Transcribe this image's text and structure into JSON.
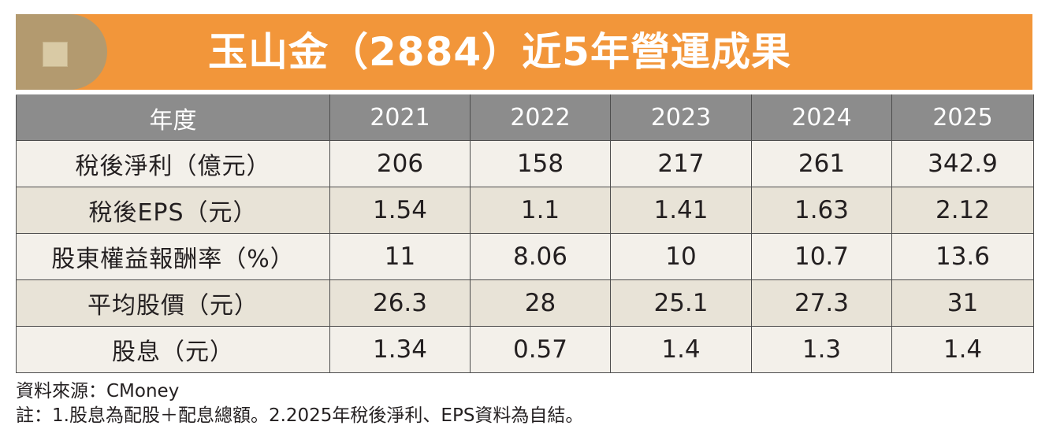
{
  "title": "玉山金（2884）近5年營運成果",
  "table": {
    "header_label": "年度",
    "years": [
      "2021",
      "2022",
      "2023",
      "2024",
      "2025"
    ],
    "rows": [
      {
        "label": "稅後淨利（億元）",
        "values": [
          "206",
          "158",
          "217",
          "261",
          "342.9"
        ]
      },
      {
        "label": "稅後EPS（元）",
        "values": [
          "1.54",
          "1.1",
          "1.41",
          "1.63",
          "2.12"
        ]
      },
      {
        "label": "股東權益報酬率（%）",
        "values": [
          "11",
          "8.06",
          "10",
          "10.7",
          "13.6"
        ]
      },
      {
        "label": "平均股價（元）",
        "values": [
          "26.3",
          "28",
          "25.1",
          "27.3",
          "31"
        ]
      },
      {
        "label": "股息（元）",
        "values": [
          "1.34",
          "0.57",
          "1.4",
          "1.3",
          "1.4"
        ]
      }
    ]
  },
  "source": "資料來源：CMoney",
  "note": "註：1.股息為配股＋配息總額。2.2025年稅後淨利、EPS資料為自結。",
  "colors": {
    "banner": "#f2963a",
    "banner_tab": "#b39a6f",
    "header_row": "#8c8c8c",
    "row_light": "#f3f0ea",
    "row_dark": "#e8e3d7"
  }
}
